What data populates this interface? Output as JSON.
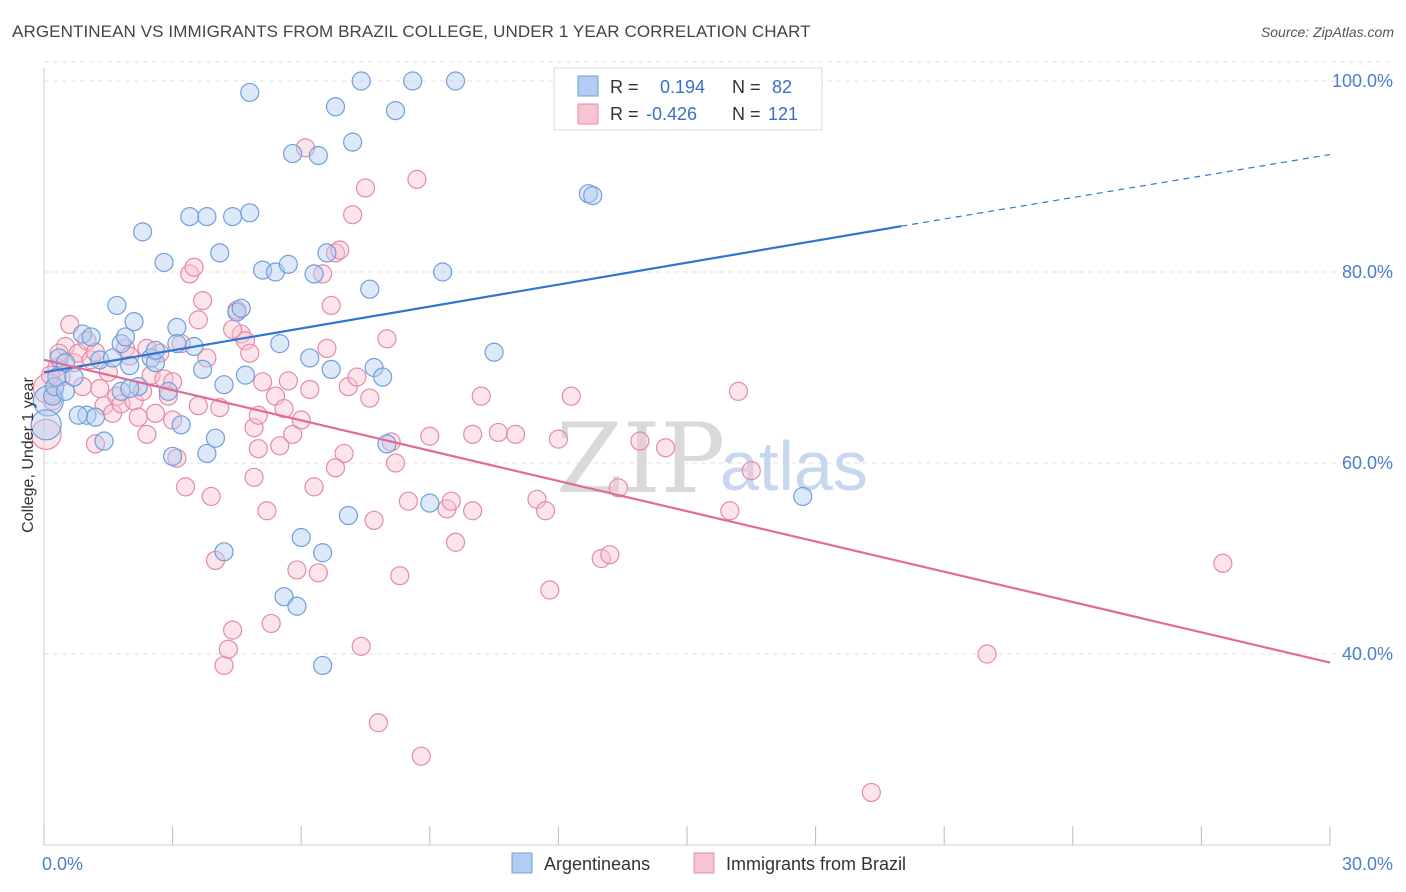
{
  "title": "ARGENTINEAN VS IMMIGRANTS FROM BRAZIL COLLEGE, UNDER 1 YEAR CORRELATION CHART",
  "source": "Source: ZipAtlas.com",
  "watermark": {
    "zip": "ZIP",
    "atlas": "atlas"
  },
  "legend_top": {
    "rows": [
      {
        "r_label": "R =",
        "r_value": "0.194",
        "n_label": "N =",
        "n_value": "82",
        "color": "#a9c8f0"
      },
      {
        "r_label": "R =",
        "r_value": "-0.426",
        "n_label": "N =",
        "n_value": "121",
        "color": "#f6b8cb"
      }
    ]
  },
  "chart_data": {
    "type": "scatter",
    "title": "ARGENTINEAN VS IMMIGRANTS FROM BRAZIL COLLEGE, UNDER 1 YEAR CORRELATION CHART",
    "xlabel": "",
    "ylabel": "College, Under 1 year",
    "xlim": [
      0,
      30
    ],
    "ylim": [
      20,
      102
    ],
    "x_ticks_labeled": [
      "0.0%",
      "30.0%"
    ],
    "y_ticks": [
      40,
      60,
      80,
      100
    ],
    "y_tick_labels": [
      "40.0%",
      "60.0%",
      "80.0%",
      "100.0%"
    ],
    "grid": true,
    "legend_placement": "bottom",
    "series": [
      {
        "name": "Argentineans",
        "color": "#6f9fdc",
        "fill": "#b3cdf0",
        "trend": {
          "x0": 0,
          "y0": 69.5,
          "x1": 20,
          "y1": 84.8,
          "dash_to_x": 30,
          "dash_to_y": 92.3,
          "color": "#2f76d0"
        },
        "points": [
          [
            0.1,
            66.5
          ],
          [
            0.2,
            67
          ],
          [
            0.25,
            68
          ],
          [
            0.3,
            69
          ],
          [
            0.35,
            71
          ],
          [
            0.5,
            70.5
          ],
          [
            0.5,
            67.5
          ],
          [
            0.7,
            69
          ],
          [
            0.9,
            73.5
          ],
          [
            1.0,
            65
          ],
          [
            1.2,
            64.8
          ],
          [
            1.3,
            70.8
          ],
          [
            1.4,
            62.3
          ],
          [
            1.6,
            71
          ],
          [
            1.7,
            76.5
          ],
          [
            1.8,
            67.5
          ],
          [
            1.8,
            72.5
          ],
          [
            1.9,
            73.2
          ],
          [
            2.0,
            70.2
          ],
          [
            2.1,
            74.8
          ],
          [
            2.2,
            68
          ],
          [
            2.3,
            84.2
          ],
          [
            2.5,
            71
          ],
          [
            2.6,
            70.5
          ],
          [
            2.8,
            81
          ],
          [
            2.9,
            67.5
          ],
          [
            3.0,
            60.7
          ],
          [
            3.1,
            74.2
          ],
          [
            3.2,
            64
          ],
          [
            3.4,
            85.8
          ],
          [
            3.5,
            72.2
          ],
          [
            3.7,
            69.8
          ],
          [
            3.8,
            61
          ],
          [
            3.8,
            85.8
          ],
          [
            4.0,
            62.6
          ],
          [
            4.1,
            82
          ],
          [
            4.2,
            50.7
          ],
          [
            4.4,
            85.8
          ],
          [
            4.5,
            75.8
          ],
          [
            4.6,
            76.2
          ],
          [
            4.7,
            69.2
          ],
          [
            4.8,
            86.2
          ],
          [
            4.8,
            98.8
          ],
          [
            5.1,
            80.2
          ],
          [
            5.4,
            80
          ],
          [
            5.5,
            72.5
          ],
          [
            5.6,
            46
          ],
          [
            5.7,
            80.8
          ],
          [
            5.8,
            92.4
          ],
          [
            5.9,
            45
          ],
          [
            6.0,
            52.2
          ],
          [
            6.2,
            71
          ],
          [
            6.3,
            79.8
          ],
          [
            6.4,
            92.2
          ],
          [
            6.5,
            50.6
          ],
          [
            6.5,
            38.8
          ],
          [
            6.6,
            82
          ],
          [
            6.7,
            69.8
          ],
          [
            6.8,
            97.3
          ],
          [
            7.1,
            54.5
          ],
          [
            7.2,
            93.6
          ],
          [
            7.4,
            100
          ],
          [
            7.6,
            78.2
          ],
          [
            7.7,
            70
          ],
          [
            7.9,
            69
          ],
          [
            8.0,
            62
          ],
          [
            8.2,
            96.9
          ],
          [
            8.6,
            100
          ],
          [
            9.0,
            55.8
          ],
          [
            9.3,
            80
          ],
          [
            9.6,
            100
          ],
          [
            10.5,
            71.6
          ],
          [
            12.7,
            88.2
          ],
          [
            17.7,
            56.5
          ],
          [
            0.05,
            64
          ],
          [
            1.1,
            73.2
          ],
          [
            2.6,
            71.8
          ],
          [
            0.8,
            65
          ],
          [
            3.1,
            72.5
          ],
          [
            2.0,
            67.8
          ],
          [
            4.2,
            68.2
          ],
          [
            12.8,
            88
          ]
        ]
      },
      {
        "name": "Immigrants from Brazil",
        "color": "#e58aa8",
        "fill": "#f8c3d3",
        "trend": {
          "x0": 0,
          "y0": 70.8,
          "x1": 30,
          "y1": 39.1,
          "color": "#e26a97"
        },
        "points": [
          [
            0.05,
            63
          ],
          [
            0.2,
            66.5
          ],
          [
            0.3,
            70
          ],
          [
            0.4,
            69
          ],
          [
            0.5,
            72.2
          ],
          [
            0.6,
            74.5
          ],
          [
            0.7,
            70.5
          ],
          [
            0.8,
            71.5
          ],
          [
            0.9,
            68
          ],
          [
            1.0,
            72.8
          ],
          [
            1.1,
            70.8
          ],
          [
            1.2,
            71.6
          ],
          [
            1.3,
            67.8
          ],
          [
            1.4,
            66
          ],
          [
            1.5,
            69.5
          ],
          [
            1.6,
            65.2
          ],
          [
            1.7,
            67
          ],
          [
            1.8,
            66.2
          ],
          [
            1.9,
            72
          ],
          [
            2.0,
            71.2
          ],
          [
            2.1,
            66.5
          ],
          [
            2.2,
            64.8
          ],
          [
            2.3,
            67.5
          ],
          [
            2.4,
            63
          ],
          [
            2.5,
            69.2
          ],
          [
            2.6,
            65.2
          ],
          [
            2.7,
            71.5
          ],
          [
            2.8,
            68.8
          ],
          [
            2.9,
            67
          ],
          [
            3.0,
            64.5
          ],
          [
            3.1,
            60.5
          ],
          [
            3.2,
            72.5
          ],
          [
            3.3,
            57.5
          ],
          [
            3.4,
            79.8
          ],
          [
            3.5,
            80.5
          ],
          [
            3.6,
            75
          ],
          [
            3.7,
            77
          ],
          [
            3.8,
            71
          ],
          [
            3.9,
            56.5
          ],
          [
            4.0,
            49.8
          ],
          [
            4.1,
            65.8
          ],
          [
            4.2,
            38.8
          ],
          [
            4.3,
            40.5
          ],
          [
            4.4,
            42.5
          ],
          [
            4.5,
            76
          ],
          [
            4.6,
            73.5
          ],
          [
            4.7,
            72.8
          ],
          [
            4.8,
            71.5
          ],
          [
            4.9,
            63.7
          ],
          [
            5.0,
            61.5
          ],
          [
            5.1,
            68.5
          ],
          [
            5.2,
            55
          ],
          [
            5.3,
            43.2
          ],
          [
            5.4,
            67
          ],
          [
            5.5,
            61.8
          ],
          [
            5.6,
            65.7
          ],
          [
            5.7,
            68.6
          ],
          [
            5.8,
            63
          ],
          [
            5.9,
            48.8
          ],
          [
            6.0,
            64.5
          ],
          [
            6.1,
            93
          ],
          [
            6.2,
            67.7
          ],
          [
            6.3,
            57.5
          ],
          [
            6.4,
            48.5
          ],
          [
            6.5,
            79.8
          ],
          [
            6.6,
            72
          ],
          [
            6.7,
            76.5
          ],
          [
            6.8,
            82
          ],
          [
            6.9,
            82.3
          ],
          [
            7.0,
            61
          ],
          [
            7.1,
            68
          ],
          [
            7.2,
            86
          ],
          [
            7.3,
            69
          ],
          [
            7.4,
            40.8
          ],
          [
            7.5,
            88.8
          ],
          [
            7.6,
            66.8
          ],
          [
            7.7,
            54
          ],
          [
            7.8,
            32.8
          ],
          [
            8.0,
            73
          ],
          [
            8.1,
            62.2
          ],
          [
            8.3,
            48.2
          ],
          [
            8.5,
            56
          ],
          [
            8.7,
            89.7
          ],
          [
            8.8,
            29.3
          ],
          [
            9.0,
            62.8
          ],
          [
            9.4,
            55.2
          ],
          [
            9.6,
            51.7
          ],
          [
            10.0,
            63
          ],
          [
            10.2,
            67
          ],
          [
            10.6,
            63.2
          ],
          [
            11.0,
            63
          ],
          [
            11.5,
            56.2
          ],
          [
            11.7,
            55
          ],
          [
            11.8,
            46.7
          ],
          [
            12.0,
            62.5
          ],
          [
            12.3,
            67
          ],
          [
            13.0,
            50
          ],
          [
            13.2,
            50.4
          ],
          [
            13.4,
            57.4
          ],
          [
            13.9,
            62.3
          ],
          [
            14.5,
            61.6
          ],
          [
            16.0,
            55
          ],
          [
            16.2,
            67.5
          ],
          [
            16.5,
            59.2
          ],
          [
            19.3,
            25.5
          ],
          [
            22.0,
            40
          ],
          [
            27.5,
            49.5
          ],
          [
            10.0,
            55
          ],
          [
            9.5,
            56
          ],
          [
            0.1,
            67.8
          ],
          [
            0.15,
            69.2
          ],
          [
            0.35,
            71.5
          ],
          [
            3.0,
            68.5
          ],
          [
            4.4,
            74
          ],
          [
            5.0,
            65
          ],
          [
            6.8,
            59.5
          ],
          [
            2.4,
            72
          ],
          [
            1.2,
            62
          ],
          [
            3.6,
            66
          ],
          [
            4.9,
            58.5
          ],
          [
            8.2,
            60
          ]
        ]
      }
    ]
  }
}
